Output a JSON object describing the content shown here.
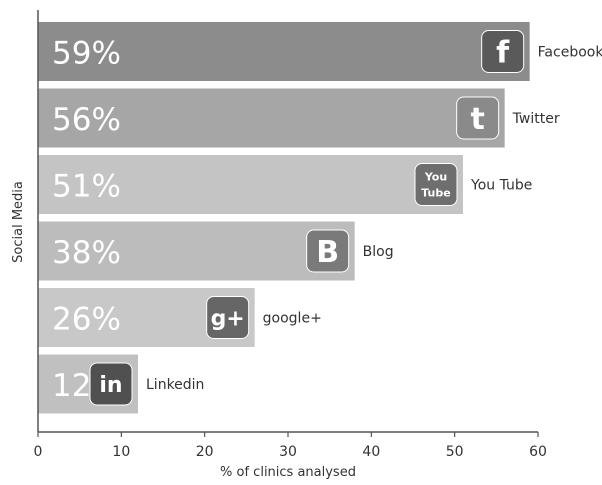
{
  "chart_data": {
    "type": "bar",
    "orientation": "horizontal",
    "categories": [
      "Facebook",
      "Twitter",
      "You Tube",
      "Blog",
      "google+",
      "Linkedin"
    ],
    "values": [
      59,
      56,
      51,
      38,
      26,
      12
    ],
    "value_labels": [
      "59%",
      "56%",
      "51%",
      "38%",
      "26%",
      "12%"
    ],
    "icons": [
      "facebook-icon",
      "twitter-icon",
      "youtube-icon",
      "blogger-icon",
      "google-plus-icon",
      "linkedin-icon"
    ],
    "icon_glyphs": [
      "f",
      "t",
      "You Tube",
      "B",
      "g+",
      "in"
    ],
    "bar_colors": [
      "#8c8c8c",
      "#a6a6a6",
      "#c4c4c4",
      "#bcbcbc",
      "#c8c8c8",
      "#c0c0c0"
    ],
    "icon_colors": [
      "#5a5a5a",
      "#8a8a8a",
      "#6e6e6e",
      "#7a7a7a",
      "#666666",
      "#505050"
    ],
    "xlabel": "% of clinics analysed",
    "ylabel": "Social Media",
    "xlim": [
      0,
      60
    ],
    "xticks": [
      0,
      10,
      20,
      30,
      40,
      50,
      60
    ],
    "grid": false,
    "legend": "none"
  }
}
